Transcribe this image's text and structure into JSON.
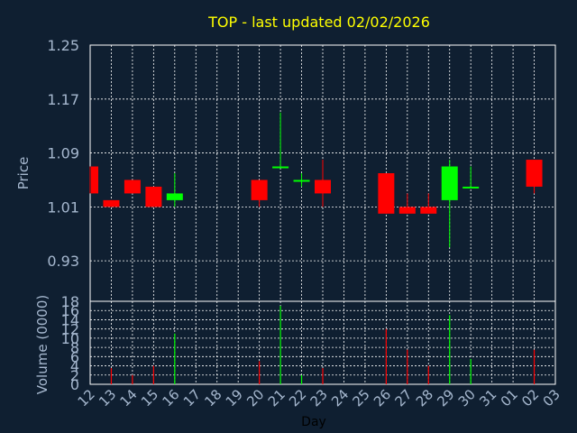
{
  "chart_data": {
    "type": "candlestick",
    "title": "TOP - last updated 02/02/2026",
    "xlabel": "Day",
    "price_ylabel": "Price",
    "volume_ylabel": "Volume (0000)",
    "x_ticks": [
      "12",
      "13",
      "14",
      "15",
      "16",
      "17",
      "18",
      "19",
      "20",
      "21",
      "22",
      "23",
      "24",
      "25",
      "26",
      "27",
      "28",
      "29",
      "30",
      "31",
      "01",
      "02",
      "03"
    ],
    "price_ticks": [
      "1.25",
      "1.17",
      "1.09",
      "1.01",
      "0.93"
    ],
    "price_ylim": [
      0.87,
      1.25
    ],
    "volume_ticks": [
      "0",
      "2",
      "4",
      "6",
      "8",
      "10",
      "12",
      "14",
      "16",
      "18"
    ],
    "volume_ylim": [
      0,
      18
    ],
    "grid": true,
    "colors": {
      "background": "#0f1f31",
      "up": "#00ff00",
      "down": "#ff0000",
      "grid": "#ffffff",
      "title": "#ffff00",
      "axis_text": "#a6b8cf"
    },
    "candles": [
      {
        "day": "12",
        "open": 1.07,
        "high": 1.07,
        "low": 1.03,
        "close": 1.03
      },
      {
        "day": "13",
        "open": 1.02,
        "high": 1.02,
        "low": 1.01,
        "close": 1.01
      },
      {
        "day": "14",
        "open": 1.05,
        "high": 1.05,
        "low": 1.03,
        "close": 1.03
      },
      {
        "day": "15",
        "open": 1.04,
        "high": 1.04,
        "low": 1.01,
        "close": 1.01
      },
      {
        "day": "16",
        "open": 1.02,
        "high": 1.06,
        "low": 1.01,
        "close": 1.03
      },
      {
        "day": "20",
        "open": 1.05,
        "high": 1.05,
        "low": 1.01,
        "close": 1.02
      },
      {
        "day": "21",
        "open": 1.07,
        "high": 1.15,
        "low": 1.07,
        "close": 1.07
      },
      {
        "day": "22",
        "open": 1.05,
        "high": 1.06,
        "low": 1.04,
        "close": 1.05
      },
      {
        "day": "23",
        "open": 1.05,
        "high": 1.08,
        "low": 1.01,
        "close": 1.03
      },
      {
        "day": "26",
        "open": 1.06,
        "high": 1.06,
        "low": 1.0,
        "close": 1.0
      },
      {
        "day": "27",
        "open": 1.01,
        "high": 1.03,
        "low": 1.0,
        "close": 1.0
      },
      {
        "day": "28",
        "open": 1.01,
        "high": 1.03,
        "low": 1.0,
        "close": 1.0
      },
      {
        "day": "29",
        "open": 1.02,
        "high": 1.08,
        "low": 0.95,
        "close": 1.07
      },
      {
        "day": "30",
        "open": 1.04,
        "high": 1.07,
        "low": 1.04,
        "close": 1.04
      },
      {
        "day": "02",
        "open": 1.08,
        "high": 1.08,
        "low": 1.03,
        "close": 1.04
      }
    ],
    "volume": [
      {
        "day": "13",
        "value": 3.5,
        "dir": "down"
      },
      {
        "day": "14",
        "value": 2.0,
        "dir": "down"
      },
      {
        "day": "15",
        "value": 4.0,
        "dir": "down"
      },
      {
        "day": "16",
        "value": 11.0,
        "dir": "up"
      },
      {
        "day": "20",
        "value": 5.0,
        "dir": "down"
      },
      {
        "day": "21",
        "value": 17.0,
        "dir": "up"
      },
      {
        "day": "22",
        "value": 2.0,
        "dir": "up"
      },
      {
        "day": "23",
        "value": 3.5,
        "dir": "down"
      },
      {
        "day": "26",
        "value": 12.0,
        "dir": "down"
      },
      {
        "day": "27",
        "value": 7.5,
        "dir": "down"
      },
      {
        "day": "28",
        "value": 4.0,
        "dir": "down"
      },
      {
        "day": "29",
        "value": 15.0,
        "dir": "up"
      },
      {
        "day": "30",
        "value": 5.5,
        "dir": "up"
      },
      {
        "day": "02",
        "value": 7.5,
        "dir": "down"
      }
    ]
  }
}
